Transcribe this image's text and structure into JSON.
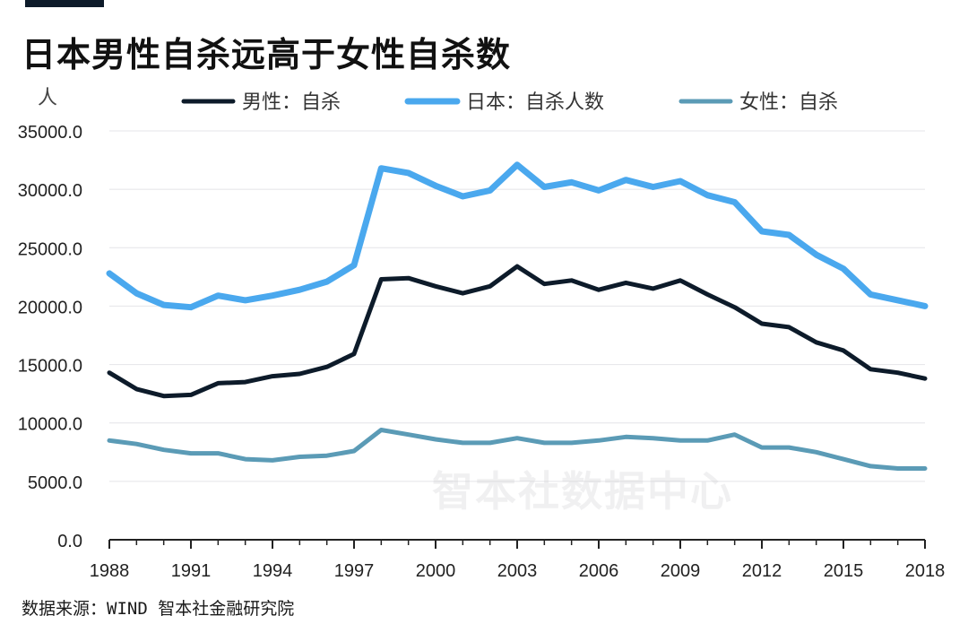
{
  "header": {
    "title": "日本男性自杀远高于女性自杀数"
  },
  "footer": {
    "source": "数据来源：WIND 智本社金融研究院"
  },
  "watermark": "智本社数据中心",
  "colors": {
    "accent_bar": "#0d1b2a",
    "male": "#0d1b2a",
    "total": "#4aa8ee",
    "female": "#5b9bb6",
    "grid": "#e4e4e8",
    "axis": "#222222"
  },
  "chart_data": {
    "type": "line",
    "title": "日本男性自杀远高于女性自杀数",
    "ylabel": "人",
    "xlabel": "",
    "ylim": [
      0,
      35000
    ],
    "yticks": [
      "0.0",
      "5000.0",
      "10000.0",
      "15000.0",
      "20000.0",
      "25000.0",
      "30000.0",
      "35000.0"
    ],
    "xticks": [
      "1988",
      "1991",
      "1994",
      "1997",
      "2000",
      "2003",
      "2006",
      "2009",
      "2012",
      "2015",
      "2018"
    ],
    "x": [
      1988,
      1989,
      1990,
      1991,
      1992,
      1993,
      1994,
      1995,
      1996,
      1997,
      1998,
      1999,
      2000,
      2001,
      2002,
      2003,
      2004,
      2005,
      2006,
      2007,
      2008,
      2009,
      2010,
      2011,
      2012,
      2013,
      2014,
      2015,
      2016,
      2017,
      2018
    ],
    "grid": true,
    "legend_position": "top",
    "series": [
      {
        "name": "男性：自杀",
        "color": "#0d1b2a",
        "values": [
          14300,
          12900,
          12300,
          12400,
          13400,
          13500,
          14000,
          14200,
          14800,
          15900,
          22300,
          22400,
          21700,
          21100,
          21700,
          23400,
          21900,
          22200,
          21400,
          22000,
          21500,
          22200,
          21000,
          19900,
          18500,
          18200,
          16900,
          16200,
          14600,
          14300,
          13800
        ]
      },
      {
        "name": "日本：自杀人数",
        "color": "#4aa8ee",
        "values": [
          22800,
          21100,
          20100,
          19900,
          20900,
          20500,
          20900,
          21400,
          22100,
          23500,
          31800,
          31400,
          30300,
          29400,
          29900,
          32100,
          30200,
          30600,
          29900,
          30800,
          30200,
          30700,
          29500,
          28900,
          26400,
          26100,
          24400,
          23200,
          21000,
          20500,
          20000
        ]
      },
      {
        "name": "女性：自杀",
        "color": "#5b9bb6",
        "values": [
          8500,
          8200,
          7700,
          7400,
          7400,
          6900,
          6800,
          7100,
          7200,
          7600,
          9400,
          9000,
          8600,
          8300,
          8300,
          8700,
          8300,
          8300,
          8500,
          8800,
          8700,
          8500,
          8500,
          9000,
          7900,
          7900,
          7500,
          6900,
          6300,
          6100,
          6100
        ]
      }
    ]
  }
}
